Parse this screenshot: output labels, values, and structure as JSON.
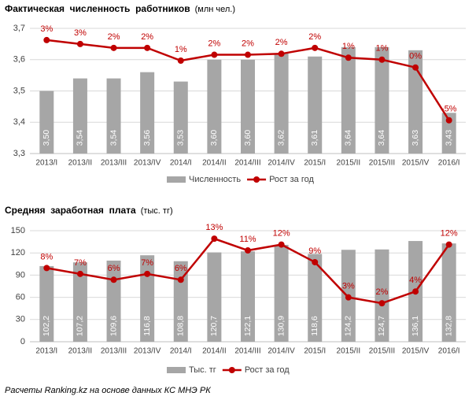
{
  "chart_data": [
    {
      "type": "bar",
      "title": "Фактическая  численность  работников",
      "units": "(млн чел.)",
      "categories": [
        "2013/I",
        "2013/II",
        "2013/III",
        "2013/IV",
        "2014/I",
        "2014/II",
        "2014/III",
        "2014/IV",
        "2015/I",
        "2015/II",
        "2015/III",
        "2015/IV",
        "2016/I"
      ],
      "series": [
        {
          "name": "Численность",
          "type": "bar",
          "color": "#a6a6a6",
          "values": [
            3.5,
            3.54,
            3.54,
            3.56,
            3.53,
            3.6,
            3.6,
            3.62,
            3.61,
            3.64,
            3.64,
            3.63,
            3.43
          ],
          "value_labels": [
            "3,50",
            "3,54",
            "3,54",
            "3,56",
            "3,53",
            "3,60",
            "3,60",
            "3,62",
            "3,61",
            "3,64",
            "3,64",
            "3,63",
            "3,43"
          ]
        },
        {
          "name": "Рост за год",
          "type": "line",
          "axis": "y2",
          "color": "#c00000",
          "values": [
            3.2,
            2.8,
            2.4,
            2.4,
            1.1,
            1.7,
            1.7,
            1.8,
            2.4,
            1.4,
            1.2,
            0.4,
            -5.0
          ],
          "value_labels": [
            "3%",
            "3%",
            "2%",
            "2%",
            "1%",
            "2%",
            "2%",
            "2%",
            "2%",
            "1%",
            "1%",
            "0%",
            "-5%"
          ]
        }
      ],
      "ylim": [
        3.3,
        3.7
      ],
      "yticks": [
        {
          "value": 3.3,
          "label": "3,3"
        },
        {
          "value": 3.4,
          "label": "3,4"
        },
        {
          "value": 3.5,
          "label": "3,5"
        },
        {
          "value": 3.6,
          "label": "3,6"
        },
        {
          "value": 3.7,
          "label": "3,7"
        }
      ],
      "y2lim": [
        -8.4,
        4.4
      ],
      "grid": true,
      "legend": "bottom"
    },
    {
      "type": "bar",
      "title": "Средняя  заработная  плата",
      "units": "(тыс. тг)",
      "categories": [
        "2013/I",
        "2013/II",
        "2013/III",
        "2013/IV",
        "2014/I",
        "2014/II",
        "2014/III",
        "2014/IV",
        "2015/I",
        "2015/II",
        "2015/III",
        "2015/IV",
        "2016/I"
      ],
      "series": [
        {
          "name": "Тыс. тг",
          "type": "bar",
          "color": "#a6a6a6",
          "values": [
            102.2,
            107.2,
            109.6,
            116.8,
            108.8,
            120.7,
            122.1,
            130.9,
            118.6,
            124.2,
            124.7,
            136.1,
            132.8
          ],
          "value_labels": [
            "102,2",
            "107,2",
            "109,6",
            "116,8",
            "108,8",
            "120,7",
            "122,1",
            "130,9",
            "118,6",
            "124,2",
            "124,7",
            "136,1",
            "132,8"
          ]
        },
        {
          "name": "Рост за год",
          "type": "line",
          "axis": "y2",
          "color": "#c00000",
          "values": [
            8,
            7,
            6,
            7,
            6,
            13,
            11,
            12,
            9,
            3,
            2,
            4,
            12
          ],
          "value_labels": [
            "8%",
            "7%",
            "6%",
            "7%",
            "6%",
            "13%",
            "11%",
            "12%",
            "9%",
            "3%",
            "2%",
            "4%",
            "12%"
          ]
        }
      ],
      "ylim": [
        0,
        150
      ],
      "yticks": [
        0,
        30,
        60,
        90,
        120,
        150
      ],
      "y2lim": [
        -4.56,
        14.36
      ],
      "grid": true,
      "legend": "bottom"
    }
  ],
  "footer": "Расчеты Ranking.kz на основе данных КС МНЭ РК"
}
